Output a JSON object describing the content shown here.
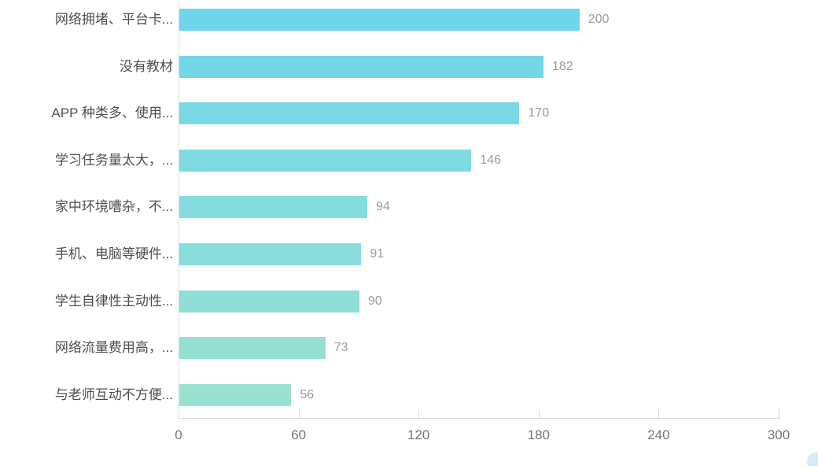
{
  "chart_data": {
    "type": "bar",
    "orientation": "horizontal",
    "title": "",
    "xlabel": "",
    "ylabel": "",
    "grid": false,
    "legend": "none",
    "categories": [
      "网络拥堵、平台卡...",
      "没有教材",
      "APP 种类多、使用...",
      "学习任务量太大，...",
      "家中环境嘈杂，不...",
      "手机、电脑等硬件...",
      "学生自律性主动性...",
      "网络流量费用高，...",
      "与老师互动不方便..."
    ],
    "values": [
      200,
      182,
      170,
      146,
      94,
      91,
      90,
      73,
      56
    ],
    "x_ticks": [
      0,
      60,
      120,
      180,
      240,
      300
    ],
    "xlim": [
      0,
      300
    ],
    "bar_colors": [
      "#6FD5EC",
      "#74D7E8",
      "#7AD8E5",
      "#7FDAE1",
      "#84DCDE",
      "#89DDDA",
      "#8EDFD6",
      "#94E0D3",
      "#99E2CF"
    ],
    "colors": {
      "category_label": "#4f4f4f",
      "value_label": "#9c9c9c",
      "axis_tick_label": "#757575",
      "axis_line": "#d9d9d9",
      "background": "#ffffff",
      "corner_artifact": "#d5ecf6"
    }
  }
}
